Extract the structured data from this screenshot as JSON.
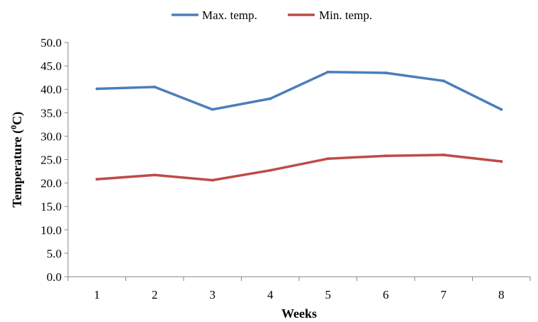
{
  "chart_data": {
    "type": "line",
    "xlabel": "Weeks",
    "ylabel_main": "Temperature (",
    "ylabel_sup": "0",
    "ylabel_end": "C)",
    "ylabel": "Temperature (0C)",
    "categories": [
      "1",
      "2",
      "3",
      "4",
      "5",
      "6",
      "7",
      "8"
    ],
    "ylim": [
      0,
      50
    ],
    "ytick_step": 5,
    "yticks": [
      "0.0",
      "5.0",
      "10.0",
      "15.0",
      "20.0",
      "25.0",
      "30.0",
      "35.0",
      "40.0",
      "45.0",
      "50.0"
    ],
    "grid": false,
    "legend_position": "top",
    "series": [
      {
        "name": "Max. temp.",
        "color": "#4a7ebb",
        "values": [
          40.1,
          40.5,
          35.7,
          38.0,
          43.7,
          43.5,
          41.8,
          35.7
        ]
      },
      {
        "name": "Min. temp.",
        "color": "#be4b48",
        "values": [
          20.8,
          21.7,
          20.6,
          22.7,
          25.2,
          25.8,
          26.0,
          24.6
        ]
      }
    ]
  }
}
